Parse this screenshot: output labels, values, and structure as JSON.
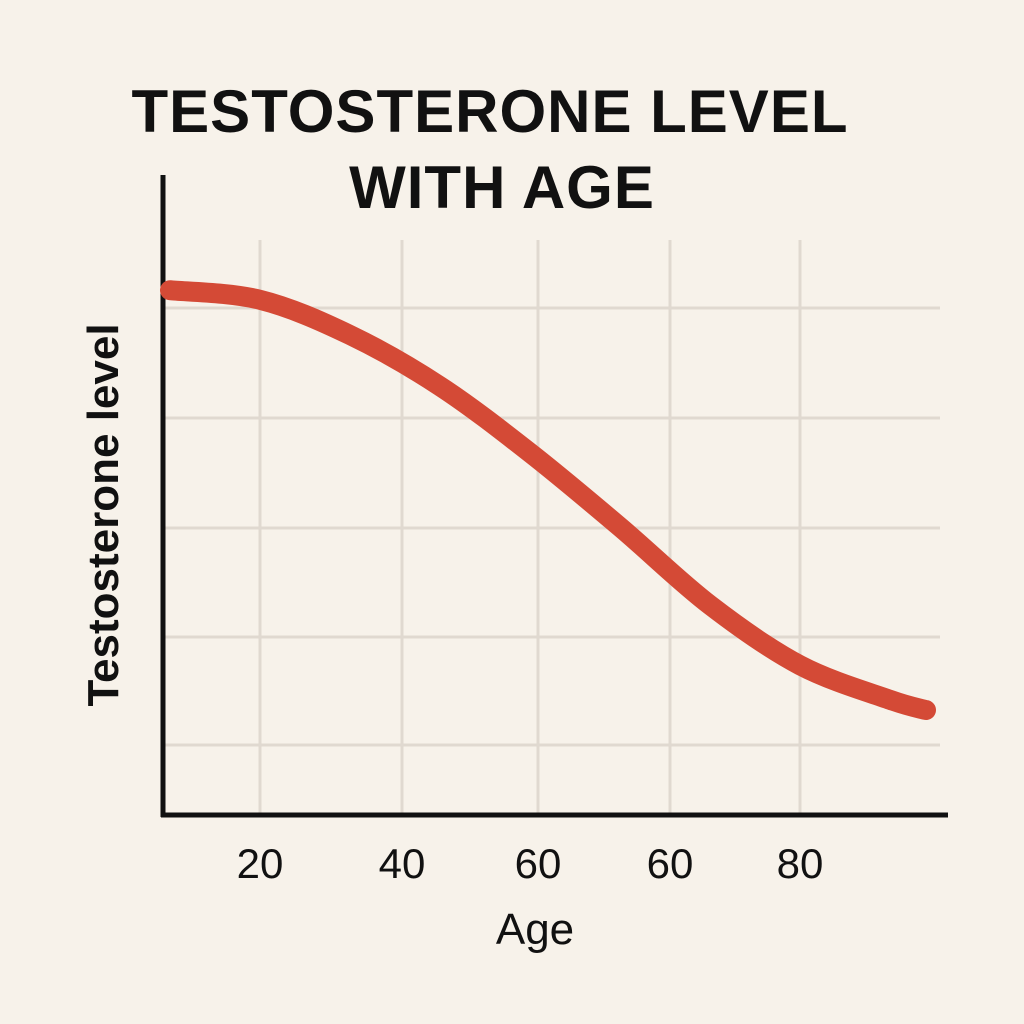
{
  "chart_data": {
    "type": "line",
    "title_line1": "TESTOSTERONE LEVEL",
    "title_line2": "WITH AGE",
    "xlabel": "Age",
    "ylabel": "Testosterone level",
    "x_tick_labels": [
      "20",
      "40",
      "60",
      "60",
      "80"
    ],
    "grid": true,
    "series": [
      {
        "x": [
          10,
          20,
          30,
          40,
          50,
          60,
          70,
          80,
          90,
          94
        ],
        "y": [
          82,
          80.5,
          75,
          67,
          56.6,
          45,
          32.8,
          23.4,
          18,
          16.4
        ]
      }
    ],
    "ylim": [
      0,
      100
    ],
    "colors": {
      "background": "#f7f2ea",
      "line": "#d44a36",
      "grid": "#e0d9d0",
      "axis": "#111111"
    }
  }
}
